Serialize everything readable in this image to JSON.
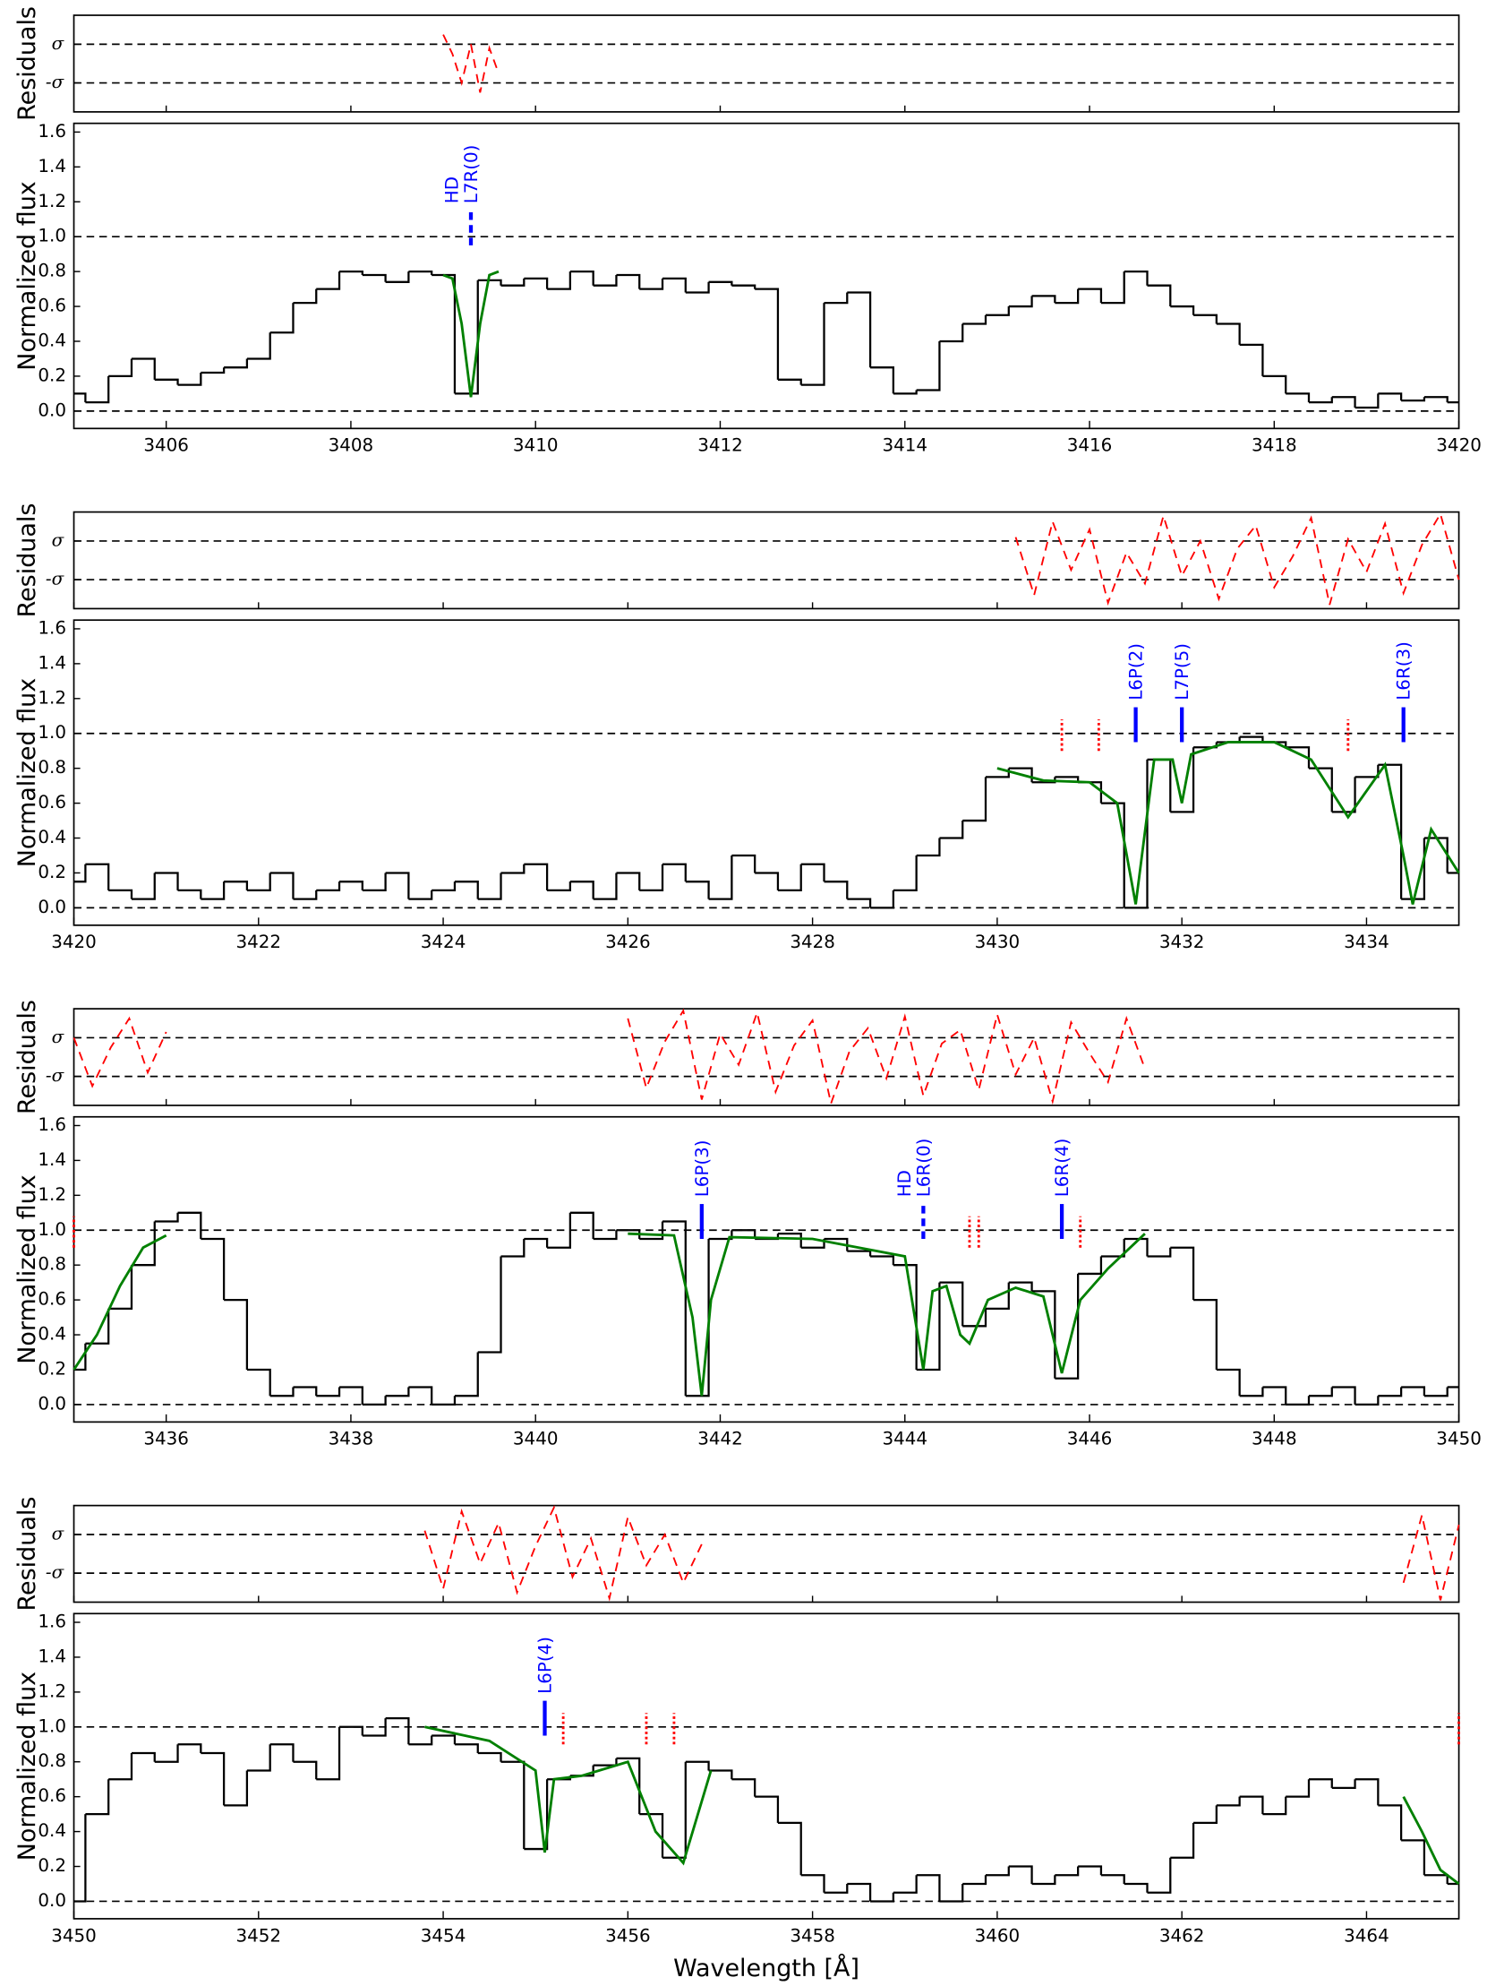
{
  "chart_data": [
    {
      "type": "spectrum",
      "ylabel": "Normalized flux",
      "xlim": [
        3405,
        3420
      ],
      "xticks": [
        3406,
        3408,
        3410,
        3412,
        3414,
        3416,
        3418,
        3420
      ],
      "ylim": [
        -0.1,
        1.65
      ],
      "yticks": [
        {
          "value": 0,
          "label": "0.0"
        },
        0.2,
        0.4,
        0.6,
        0.8,
        {
          "value": 1,
          "label": "1.0"
        },
        1.2,
        1.4,
        1.6
      ],
      "reference_lines": [
        0,
        1
      ],
      "color": "#000000",
      "x": [
        3405,
        3405.25,
        3405.5,
        3405.75,
        3406,
        3406.25,
        3406.5,
        3406.75,
        3407,
        3407.25,
        3407.5,
        3407.75,
        3408,
        3408.25,
        3408.5,
        3408.75,
        3409,
        3409.25,
        3409.5,
        3409.75,
        3410,
        3410.25,
        3410.5,
        3410.75,
        3411,
        3411.25,
        3411.5,
        3411.75,
        3412,
        3412.25,
        3412.5,
        3412.75,
        3413,
        3413.25,
        3413.5,
        3413.75,
        3414,
        3414.25,
        3414.5,
        3414.75,
        3415,
        3415.25,
        3415.5,
        3415.75,
        3416,
        3416.25,
        3416.5,
        3416.75,
        3417,
        3417.25,
        3417.5,
        3417.75,
        3418,
        3418.25,
        3418.5,
        3418.75,
        3419,
        3419.25,
        3419.5,
        3419.75,
        3420
      ],
      "values": [
        0.1,
        0.05,
        0.2,
        0.3,
        0.18,
        0.15,
        0.22,
        0.25,
        0.3,
        0.45,
        0.62,
        0.7,
        0.8,
        0.78,
        0.74,
        0.8,
        0.78,
        0.1,
        0.75,
        0.72,
        0.76,
        0.7,
        0.8,
        0.72,
        0.78,
        0.7,
        0.76,
        0.68,
        0.74,
        0.72,
        0.7,
        0.18,
        0.15,
        0.62,
        0.68,
        0.25,
        0.1,
        0.12,
        0.4,
        0.5,
        0.55,
        0.6,
        0.66,
        0.62,
        0.7,
        0.62,
        0.8,
        0.72,
        0.6,
        0.55,
        0.5,
        0.38,
        0.2,
        0.1,
        0.05,
        0.08,
        0.02,
        0.1,
        0.06,
        0.08,
        0.05
      ],
      "fit": {
        "color": "#008000",
        "x": [
          3409.0,
          3409.1,
          3409.2,
          3409.3,
          3409.4,
          3409.5,
          3409.6
        ],
        "values": [
          0.78,
          0.76,
          0.5,
          0.08,
          0.5,
          0.78,
          0.8
        ]
      },
      "lines": [
        {
          "x": 3409.3,
          "labels": [
            "HD",
            "L7R(0)"
          ],
          "dashed": true
        }
      ],
      "line_color": "#0000ff",
      "components": [],
      "component_color": "#ff0000",
      "residuals": {
        "ylabel": "Residuals",
        "ylim": [
          -2.5,
          2.5
        ],
        "yticks": [
          {
            "value": 1,
            "label": "σ"
          },
          {
            "value": -1,
            "label": "-σ"
          }
        ],
        "reference_lines": [
          1,
          -1
        ],
        "color": "#ff0000",
        "x": [
          3409.0,
          3409.1,
          3409.2,
          3409.3,
          3409.4,
          3409.5,
          3409.6
        ],
        "values": [
          1.5,
          0.5,
          -1,
          1,
          -1.5,
          0.8,
          -0.5
        ]
      }
    },
    {
      "type": "spectrum",
      "ylabel": "Normalized flux",
      "xlim": [
        3420,
        3435
      ],
      "xticks": [
        3420,
        3422,
        3424,
        3426,
        3428,
        3430,
        3432,
        3434
      ],
      "ylim": [
        -0.1,
        1.65
      ],
      "yticks": [
        {
          "value": 0,
          "label": "0.0"
        },
        0.2,
        0.4,
        0.6,
        0.8,
        {
          "value": 1,
          "label": "1.0"
        },
        1.2,
        1.4,
        1.6
      ],
      "reference_lines": [
        0,
        1
      ],
      "color": "#000000",
      "x": [
        3420,
        3420.25,
        3420.5,
        3420.75,
        3421,
        3421.25,
        3421.5,
        3421.75,
        3422,
        3422.25,
        3422.5,
        3422.75,
        3423,
        3423.25,
        3423.5,
        3423.75,
        3424,
        3424.25,
        3424.5,
        3424.75,
        3425,
        3425.25,
        3425.5,
        3425.75,
        3426,
        3426.25,
        3426.5,
        3426.75,
        3427,
        3427.25,
        3427.5,
        3427.75,
        3428,
        3428.25,
        3428.5,
        3428.75,
        3429,
        3429.25,
        3429.5,
        3429.75,
        3430,
        3430.25,
        3430.5,
        3430.75,
        3431,
        3431.25,
        3431.5,
        3431.75,
        3432,
        3432.25,
        3432.5,
        3432.75,
        3433,
        3433.25,
        3433.5,
        3433.75,
        3434,
        3434.25,
        3434.5,
        3434.75,
        3435
      ],
      "values": [
        0.15,
        0.25,
        0.1,
        0.05,
        0.2,
        0.1,
        0.05,
        0.15,
        0.1,
        0.2,
        0.05,
        0.1,
        0.15,
        0.1,
        0.2,
        0.05,
        0.1,
        0.15,
        0.05,
        0.2,
        0.25,
        0.1,
        0.15,
        0.05,
        0.2,
        0.1,
        0.25,
        0.15,
        0.05,
        0.3,
        0.2,
        0.1,
        0.25,
        0.15,
        0.05,
        0.0,
        0.1,
        0.3,
        0.4,
        0.5,
        0.75,
        0.8,
        0.72,
        0.75,
        0.72,
        0.6,
        0.0,
        0.85,
        0.55,
        0.92,
        0.95,
        0.98,
        0.95,
        0.92,
        0.8,
        0.55,
        0.75,
        0.82,
        0.05,
        0.4,
        0.2
      ],
      "fit": {
        "color": "#008000",
        "x": [
          3430.0,
          3430.5,
          3431.0,
          3431.3,
          3431.5,
          3431.7,
          3431.9,
          3432.0,
          3432.1,
          3432.5,
          3433.0,
          3433.4,
          3433.8,
          3434.2,
          3434.4,
          3434.5,
          3434.7,
          3435.0
        ],
        "values": [
          0.8,
          0.73,
          0.72,
          0.6,
          0.02,
          0.85,
          0.85,
          0.6,
          0.88,
          0.95,
          0.95,
          0.85,
          0.52,
          0.82,
          0.3,
          0.02,
          0.45,
          0.2
        ]
      },
      "lines": [
        {
          "x": 3431.5,
          "labels": [
            "L6P(2)"
          ],
          "dashed": false
        },
        {
          "x": 3432.0,
          "labels": [
            "L7P(5)"
          ],
          "dashed": false
        },
        {
          "x": 3434.4,
          "labels": [
            "L6R(3)"
          ],
          "dashed": false
        }
      ],
      "line_color": "#0000ff",
      "components": [
        3430.7,
        3431.1,
        3433.8
      ],
      "component_color": "#ff0000",
      "residuals": {
        "ylabel": "Residuals",
        "ylim": [
          -2.5,
          2.5
        ],
        "yticks": [
          {
            "value": 1,
            "label": "σ"
          },
          {
            "value": -1,
            "label": "-σ"
          }
        ],
        "reference_lines": [
          1,
          -1
        ],
        "color": "#ff0000",
        "x": [
          3430.2,
          3430.4,
          3430.6,
          3430.8,
          3431,
          3431.2,
          3431.4,
          3431.6,
          3431.8,
          3432,
          3432.2,
          3432.4,
          3432.6,
          3432.8,
          3433,
          3433.2,
          3433.4,
          3433.6,
          3433.8,
          3434,
          3434.2,
          3434.4,
          3434.6,
          3434.8,
          3435
        ],
        "values": [
          1.2,
          -1.8,
          2.0,
          -0.5,
          1.6,
          -2.2,
          0.4,
          -1.2,
          2.3,
          -0.8,
          1.0,
          -2.0,
          0.6,
          1.8,
          -1.4,
          0.2,
          2.2,
          -2.3,
          1.1,
          -0.6,
          1.9,
          -1.7,
          0.8,
          2.4,
          -1.0
        ]
      }
    },
    {
      "type": "spectrum",
      "ylabel": "Normalized flux",
      "xlim": [
        3435,
        3450
      ],
      "xticks": [
        3436,
        3438,
        3440,
        3442,
        3444,
        3446,
        3448,
        3450
      ],
      "ylim": [
        -0.1,
        1.65
      ],
      "yticks": [
        {
          "value": 0,
          "label": "0.0"
        },
        0.2,
        0.4,
        0.6,
        0.8,
        {
          "value": 1,
          "label": "1.0"
        },
        1.2,
        1.4,
        1.6
      ],
      "reference_lines": [
        0,
        1
      ],
      "color": "#000000",
      "x": [
        3435,
        3435.25,
        3435.5,
        3435.75,
        3436,
        3436.25,
        3436.5,
        3436.75,
        3437,
        3437.25,
        3437.5,
        3437.75,
        3438,
        3438.25,
        3438.5,
        3438.75,
        3439,
        3439.25,
        3439.5,
        3439.75,
        3440,
        3440.25,
        3440.5,
        3440.75,
        3441,
        3441.25,
        3441.5,
        3441.75,
        3442,
        3442.25,
        3442.5,
        3442.75,
        3443,
        3443.25,
        3443.5,
        3443.75,
        3444,
        3444.25,
        3444.5,
        3444.75,
        3445,
        3445.25,
        3445.5,
        3445.75,
        3446,
        3446.25,
        3446.5,
        3446.75,
        3447,
        3447.25,
        3447.5,
        3447.75,
        3448,
        3448.25,
        3448.5,
        3448.75,
        3449,
        3449.25,
        3449.5,
        3449.75,
        3450
      ],
      "values": [
        0.2,
        0.35,
        0.55,
        0.8,
        1.05,
        1.1,
        0.95,
        0.6,
        0.2,
        0.05,
        0.1,
        0.05,
        0.1,
        0.0,
        0.05,
        0.1,
        0.0,
        0.05,
        0.3,
        0.85,
        0.95,
        0.9,
        1.1,
        0.95,
        1.0,
        0.95,
        1.05,
        0.05,
        0.95,
        1.0,
        0.95,
        0.98,
        0.9,
        0.95,
        0.88,
        0.85,
        0.8,
        0.2,
        0.7,
        0.45,
        0.55,
        0.7,
        0.65,
        0.15,
        0.75,
        0.85,
        0.95,
        0.85,
        0.9,
        0.6,
        0.2,
        0.05,
        0.1,
        0.0,
        0.05,
        0.1,
        0.0,
        0.05,
        0.1,
        0.05,
        0.1
      ],
      "fit": {
        "color": "#008000",
        "x": [
          3435.0,
          3435.25,
          3435.5,
          3435.75,
          3436.0,
          3438,
          3441.0,
          3441.5,
          3441.7,
          3441.8,
          3441.9,
          3442.1,
          3443.0,
          3444.0,
          3444.2,
          3444.3,
          3444.45,
          3444.6,
          3444.7,
          3444.9,
          3445.2,
          3445.5,
          3445.7,
          3445.9,
          3446.2,
          3446.6
        ],
        "values": [
          0.2,
          0.4,
          0.68,
          0.9,
          0.97,
          null,
          0.98,
          0.97,
          0.5,
          0.05,
          0.6,
          0.96,
          0.95,
          0.85,
          0.2,
          0.65,
          0.68,
          0.4,
          0.35,
          0.6,
          0.67,
          0.62,
          0.18,
          0.6,
          0.78,
          0.98
        ]
      },
      "lines": [
        {
          "x": 3441.8,
          "labels": [
            "L6P(3)"
          ],
          "dashed": false
        },
        {
          "x": 3444.2,
          "labels": [
            "HD",
            "L6R(0)"
          ],
          "dashed": true
        },
        {
          "x": 3445.7,
          "labels": [
            "L6R(4)"
          ],
          "dashed": false
        }
      ],
      "line_color": "#0000ff",
      "components": [
        3435.0,
        3444.7,
        3444.8,
        3445.9
      ],
      "component_color": "#ff0000",
      "residuals": {
        "ylabel": "Residuals",
        "ylim": [
          -2.5,
          2.5
        ],
        "yticks": [
          {
            "value": 1,
            "label": "σ"
          },
          {
            "value": -1,
            "label": "-σ"
          }
        ],
        "reference_lines": [
          1,
          -1
        ],
        "color": "#ff0000",
        "x": [
          3435,
          3435.2,
          3435.4,
          3435.6,
          3435.8,
          3436,
          3438,
          3441,
          3441.2,
          3441.4,
          3441.6,
          3441.8,
          3442,
          3442.2,
          3442.4,
          3442.6,
          3442.8,
          3443,
          3443.2,
          3443.4,
          3443.6,
          3443.8,
          3444,
          3444.2,
          3444.4,
          3444.6,
          3444.8,
          3445,
          3445.2,
          3445.4,
          3445.6,
          3445.8,
          3446,
          3446.2,
          3446.4,
          3446.6
        ],
        "values": [
          1,
          -1.5,
          0.5,
          2,
          -0.8,
          1.3,
          null,
          2.0,
          -1.6,
          0.8,
          2.4,
          -2.2,
          1.2,
          -0.4,
          2.3,
          -1.8,
          0.6,
          1.9,
          -2.4,
          0.3,
          1.5,
          -1.1,
          2.1,
          -2.0,
          0.7,
          1.4,
          -1.7,
          2.2,
          -0.9,
          1.0,
          -2.3,
          1.8,
          0.2,
          -1.3,
          2.0,
          -0.6
        ]
      }
    },
    {
      "type": "spectrum",
      "ylabel": "Normalized flux",
      "xlabel": "Wavelength [Å]",
      "xlim": [
        3450,
        3465
      ],
      "xticks": [
        3450,
        3452,
        3454,
        3456,
        3458,
        3460,
        3462,
        3464
      ],
      "ylim": [
        -0.1,
        1.65
      ],
      "yticks": [
        {
          "value": 0,
          "label": "0.0"
        },
        0.2,
        0.4,
        0.6,
        0.8,
        {
          "value": 1,
          "label": "1.0"
        },
        1.2,
        1.4,
        1.6
      ],
      "reference_lines": [
        0,
        1
      ],
      "color": "#000000",
      "x": [
        3450,
        3450.25,
        3450.5,
        3450.75,
        3451,
        3451.25,
        3451.5,
        3451.75,
        3452,
        3452.25,
        3452.5,
        3452.75,
        3453,
        3453.25,
        3453.5,
        3453.75,
        3454,
        3454.25,
        3454.5,
        3454.75,
        3455,
        3455.25,
        3455.5,
        3455.75,
        3456,
        3456.25,
        3456.5,
        3456.75,
        3457,
        3457.25,
        3457.5,
        3457.75,
        3458,
        3458.25,
        3458.5,
        3458.75,
        3459,
        3459.25,
        3459.5,
        3459.75,
        3460,
        3460.25,
        3460.5,
        3460.75,
        3461,
        3461.25,
        3461.5,
        3461.75,
        3462,
        3462.25,
        3462.5,
        3462.75,
        3463,
        3463.25,
        3463.5,
        3463.75,
        3464,
        3464.25,
        3464.5,
        3464.75,
        3465
      ],
      "values": [
        0.0,
        0.5,
        0.7,
        0.85,
        0.8,
        0.9,
        0.85,
        0.55,
        0.75,
        0.9,
        0.8,
        0.7,
        1.0,
        0.95,
        1.05,
        0.9,
        0.95,
        0.9,
        0.85,
        0.8,
        0.3,
        0.7,
        0.72,
        0.78,
        0.82,
        0.5,
        0.25,
        0.8,
        0.75,
        0.7,
        0.6,
        0.45,
        0.15,
        0.05,
        0.1,
        0.0,
        0.05,
        0.15,
        0.0,
        0.1,
        0.15,
        0.2,
        0.1,
        0.15,
        0.2,
        0.15,
        0.1,
        0.05,
        0.25,
        0.45,
        0.55,
        0.6,
        0.5,
        0.6,
        0.7,
        0.65,
        0.7,
        0.55,
        0.35,
        0.15,
        0.1
      ],
      "fit": {
        "color": "#008000",
        "x": [
          3453.8,
          3454.5,
          3455.0,
          3455.1,
          3455.2,
          3455.5,
          3456.0,
          3456.3,
          3456.6,
          3456.9,
          3460,
          3464.4,
          3464.6,
          3464.8,
          3465.0
        ],
        "values": [
          1.0,
          0.92,
          0.75,
          0.28,
          0.7,
          0.72,
          0.8,
          0.4,
          0.22,
          0.75,
          null,
          0.6,
          0.4,
          0.18,
          0.1
        ]
      },
      "lines": [
        {
          "x": 3455.1,
          "labels": [
            "L6P(4)"
          ],
          "dashed": false
        }
      ],
      "line_color": "#0000ff",
      "components": [
        3455.3,
        3456.2,
        3456.5,
        3465.0
      ],
      "component_color": "#ff0000",
      "residuals": {
        "ylabel": "Residuals",
        "ylim": [
          -2.5,
          2.5
        ],
        "yticks": [
          {
            "value": 1,
            "label": "σ"
          },
          {
            "value": -1,
            "label": "-σ"
          }
        ],
        "reference_lines": [
          1,
          -1
        ],
        "color": "#ff0000",
        "x": [
          3453.8,
          3454,
          3454.2,
          3454.4,
          3454.6,
          3454.8,
          3455,
          3455.2,
          3455.4,
          3455.6,
          3455.8,
          3456,
          3456.2,
          3456.4,
          3456.6,
          3456.8,
          3460,
          3464.4,
          3464.6,
          3464.8,
          3465
        ],
        "values": [
          1.2,
          -1.8,
          2.2,
          -0.5,
          1.6,
          -2.0,
          0.4,
          2.4,
          -1.2,
          0.8,
          -2.3,
          1.9,
          -0.6,
          1.0,
          -1.5,
          0.5,
          null,
          -1.5,
          2.0,
          -2.4,
          1.5
        ]
      }
    }
  ]
}
